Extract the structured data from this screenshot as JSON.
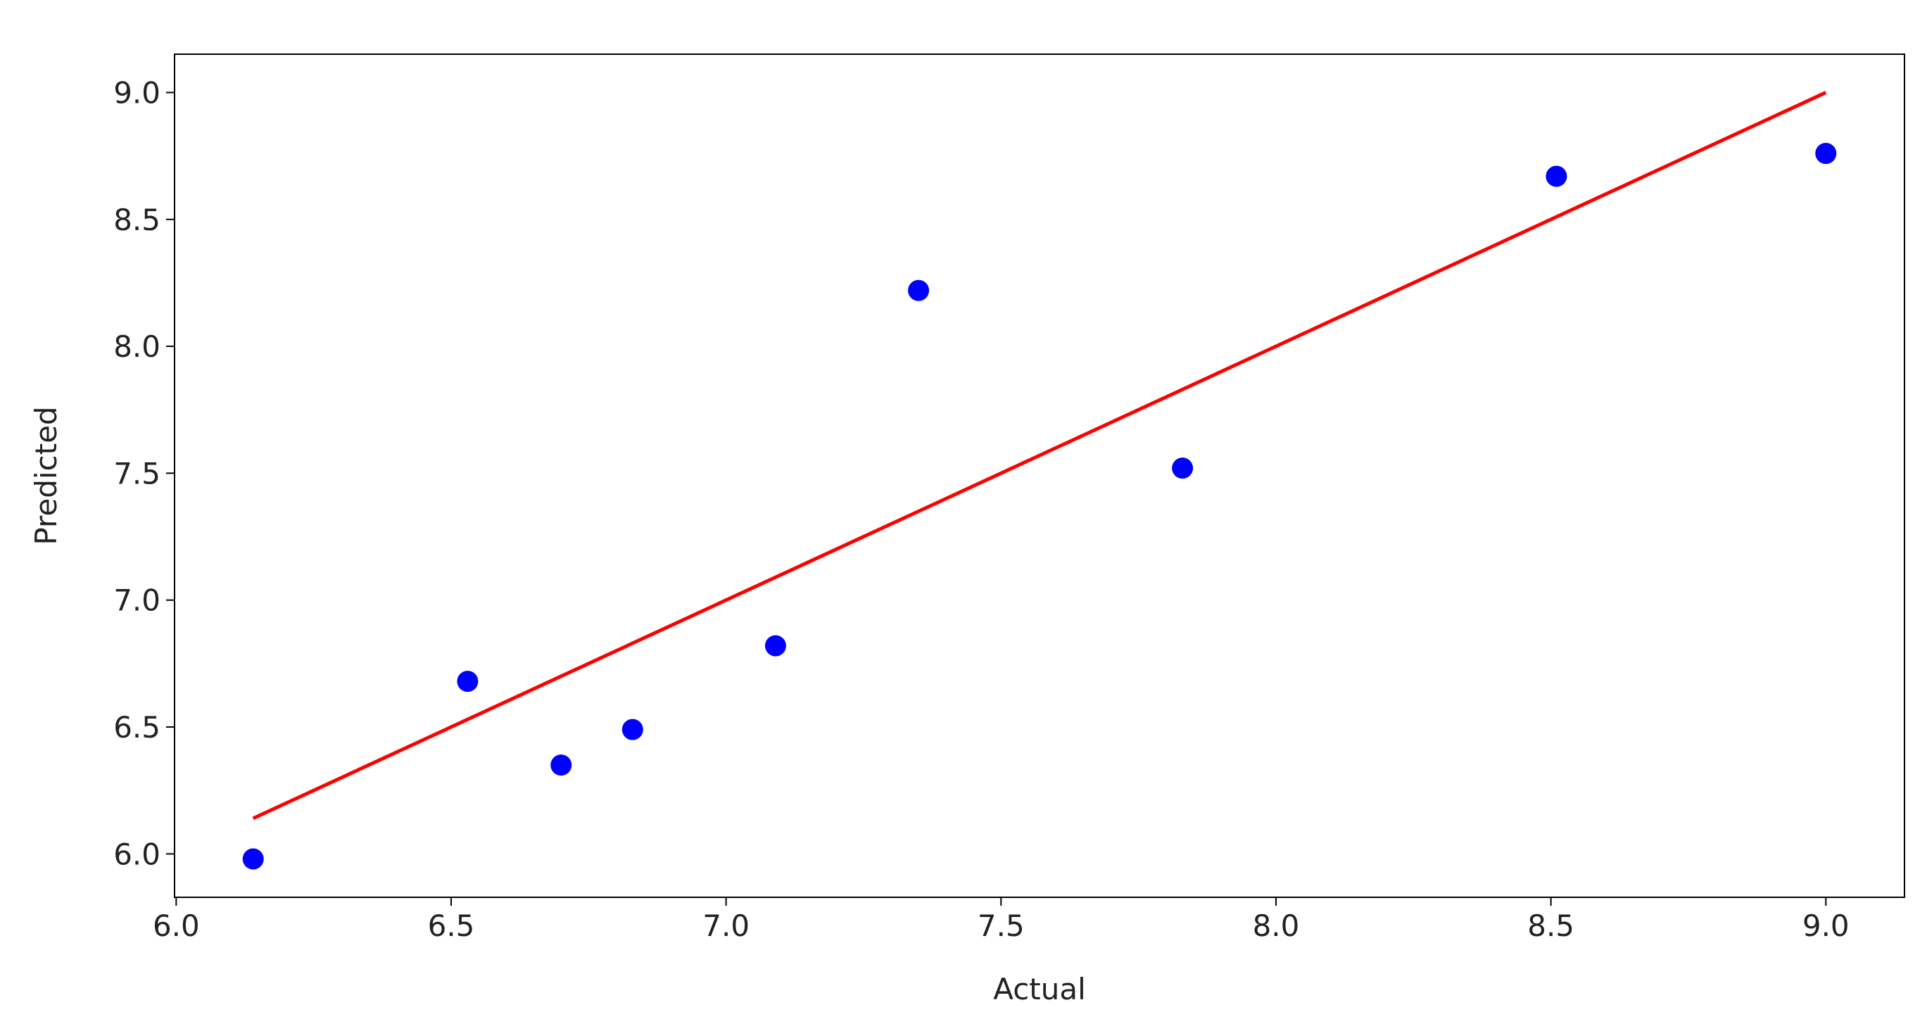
{
  "chart_data": {
    "type": "scatter",
    "x_label": "Actual",
    "y_label": "Predicted",
    "xlim": [
      5.997,
      9.143
    ],
    "ylim": [
      5.829,
      9.151
    ],
    "xticks": [
      {
        "value": 6,
        "label": "6.0"
      },
      {
        "value": 6.5,
        "label": "6.5"
      },
      {
        "value": 7,
        "label": "7.0"
      },
      {
        "value": 7.5,
        "label": "7.5"
      },
      {
        "value": 8,
        "label": "8.0"
      },
      {
        "value": 8.5,
        "label": "8.5"
      },
      {
        "value": 9,
        "label": "9.0"
      }
    ],
    "yticks": [
      {
        "value": 6,
        "label": "6.0"
      },
      {
        "value": 6.5,
        "label": "6.5"
      },
      {
        "value": 7,
        "label": "7.0"
      },
      {
        "value": 7.5,
        "label": "7.5"
      },
      {
        "value": 8,
        "label": "8.0"
      },
      {
        "value": 8.5,
        "label": "8.5"
      },
      {
        "value": 9,
        "label": "9.0"
      }
    ],
    "grid": false,
    "series": [
      {
        "type": "scatter",
        "color": "#0000ff",
        "x": [
          6.14,
          6.53,
          6.7,
          6.83,
          7.09,
          7.35,
          7.83,
          8.51,
          9.0
        ],
        "values": [
          5.98,
          6.68,
          6.35,
          6.49,
          6.82,
          8.22,
          7.52,
          8.67,
          8.76
        ]
      },
      {
        "type": "line",
        "color": "#ff0000",
        "x": [
          6.14,
          9.0
        ],
        "values": [
          6.14,
          9.0
        ]
      }
    ]
  }
}
